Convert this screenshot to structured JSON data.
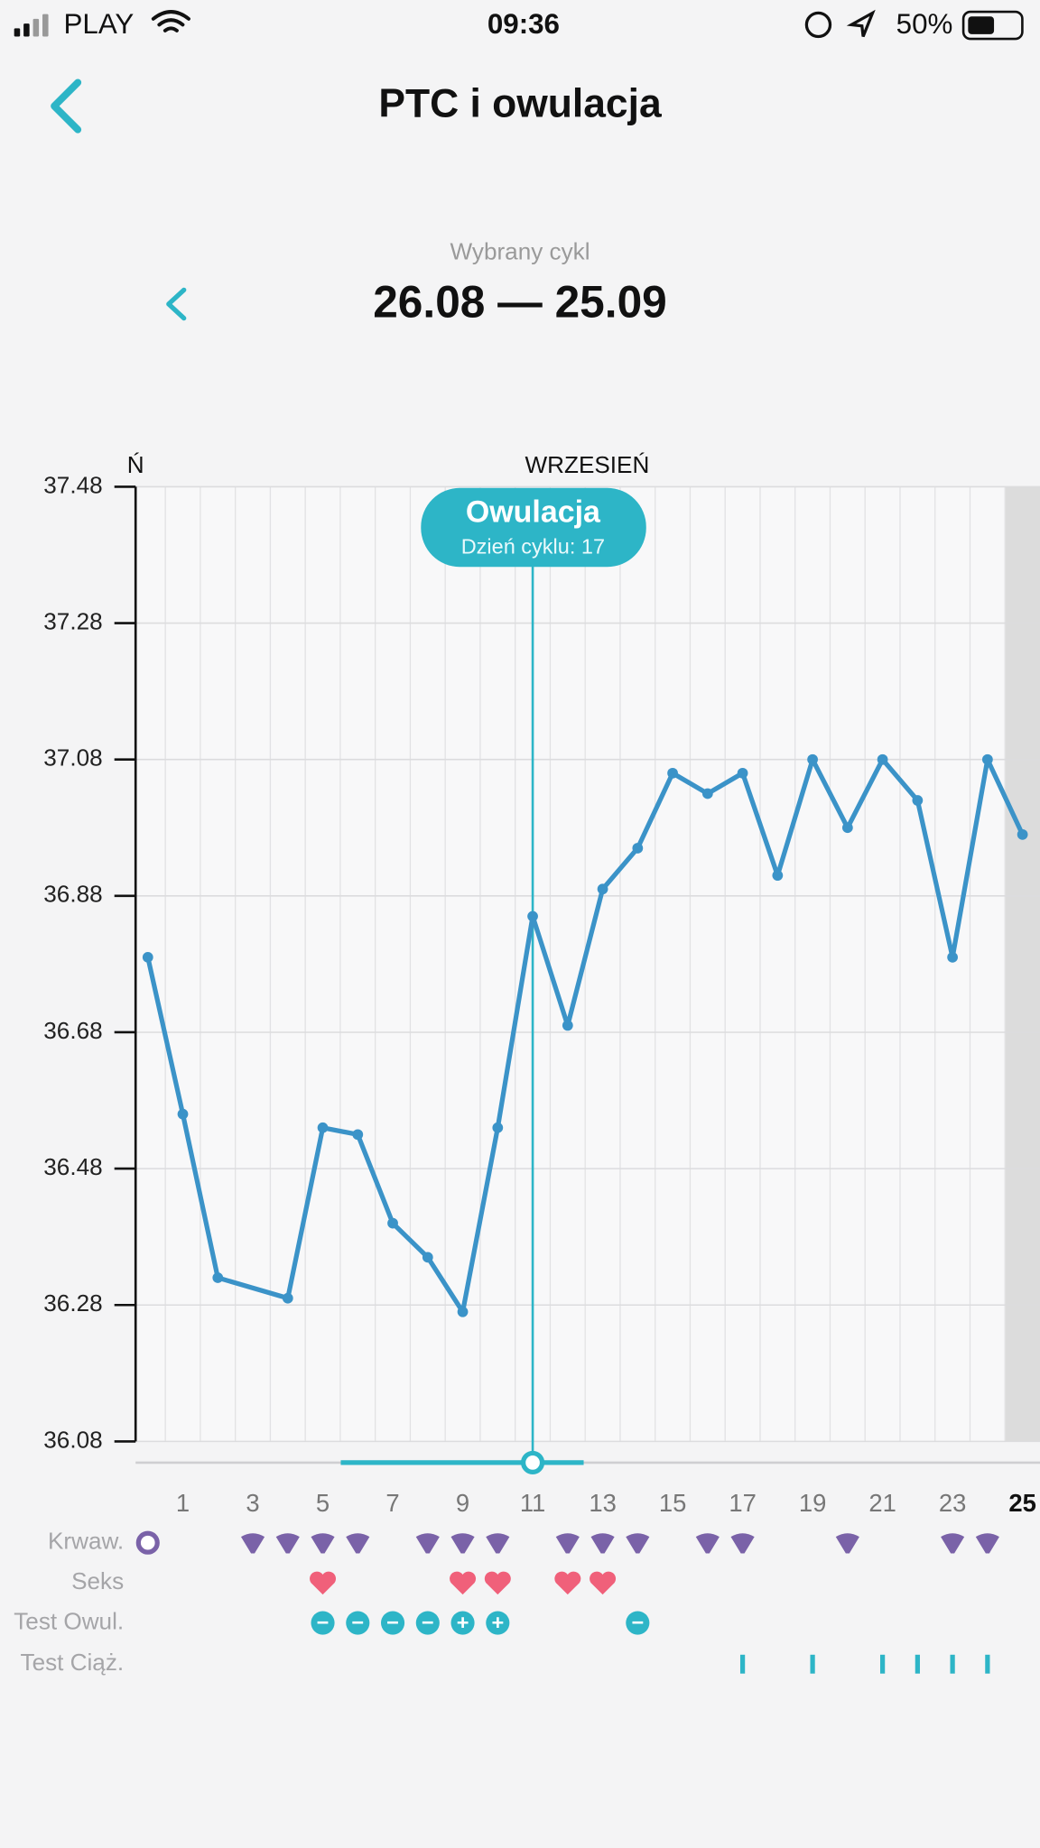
{
  "status_bar": {
    "carrier": "PLAY",
    "time": "09:36",
    "battery": "50%"
  },
  "header": {
    "title": "PTC i owulacja"
  },
  "cycle": {
    "label": "Wybrany cykl",
    "range": "26.08 — 25.09"
  },
  "chart_data": {
    "type": "line",
    "month_labels": [
      "Ń",
      "WRZESIEŃ"
    ],
    "x": [
      0,
      1,
      2,
      4,
      5,
      6,
      7,
      8,
      9,
      10,
      11,
      12,
      13,
      14,
      15,
      16,
      17,
      18,
      19,
      20,
      21,
      22,
      23,
      24,
      25
    ],
    "series": [
      {
        "color": "#3b93c8",
        "values": [
          36.79,
          36.56,
          36.32,
          36.29,
          36.54,
          36.53,
          36.4,
          36.35,
          36.27,
          36.54,
          36.85,
          36.69,
          36.89,
          36.95,
          37.06,
          37.03,
          37.06,
          36.91,
          37.08,
          36.98,
          37.08,
          37.02,
          36.79,
          37.08,
          36.97
        ]
      }
    ],
    "xlim": [
      -0.35,
      25.5
    ],
    "xticks": [
      1,
      3,
      5,
      7,
      9,
      11,
      13,
      15,
      17,
      19,
      21,
      23,
      25
    ],
    "ylim": [
      36.08,
      37.48
    ],
    "yticks": [
      37.48,
      37.28,
      37.08,
      36.88,
      36.68,
      36.48,
      36.28,
      36.08
    ],
    "grid": true,
    "annotation": {
      "text": "Owulacja",
      "subtext": "Dzień cyklu: 17",
      "x": 11,
      "color": "#2db5c7"
    },
    "rows": [
      {
        "label": "Krwaw.",
        "color": "#7a62a8",
        "x": [
          0,
          3,
          4,
          5,
          6,
          8,
          9,
          10,
          12,
          13,
          14,
          16,
          17,
          20,
          23,
          24
        ]
      },
      {
        "label": "Seks",
        "color": "#f0607a",
        "x": [
          5,
          9,
          10,
          12,
          13
        ]
      },
      {
        "label": "Test Owul.",
        "color": "#2db5c7",
        "x": [
          5,
          6,
          7,
          8,
          9,
          10,
          14
        ],
        "results": [
          "−",
          "−",
          "−",
          "−",
          "+",
          "+",
          "−"
        ]
      },
      {
        "label": "Test Ciąż.",
        "color": "#2db5c7",
        "x": [
          17,
          19,
          21,
          22,
          23,
          24
        ]
      }
    ]
  }
}
